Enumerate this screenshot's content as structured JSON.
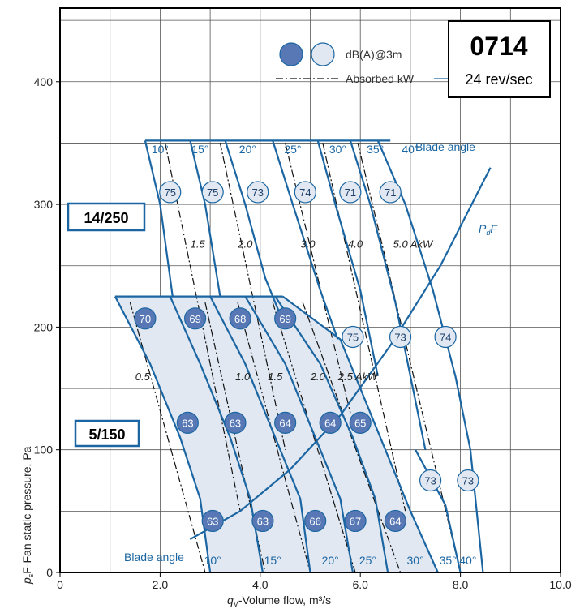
{
  "chart_data": {
    "type": "line",
    "title": "0714",
    "subtitle": "24 rev/sec",
    "xlabel_prefix": "q",
    "xlabel_sub": "V",
    "xlabel_suffix": "-Volume flow, m³/s",
    "ylabel_prefix": "p",
    "ylabel_sub": "s",
    "ylabel_suffix": "F-Fan static pressure, Pa",
    "xlim": [
      0,
      10
    ],
    "ylim": [
      0,
      460
    ],
    "xticks": [
      "0",
      "2.0",
      "4.0",
      "6.0",
      "8.0",
      "10.0"
    ],
    "yticks": [
      "0",
      "100",
      "200",
      "300",
      "400"
    ],
    "grid": true,
    "legend": {
      "placement": "top-right",
      "db_label": "dB(A)@3m",
      "kw_label": "Absorbed kW"
    },
    "colors": {
      "curve": "#1b66a2",
      "fill": "#e1e8f2",
      "dark_marker": "#5878b5",
      "light_marker": "#e1e8f2"
    },
    "sections": [
      {
        "label": "14/250",
        "blade_caption": "Blade angle",
        "blade_angles": [
          {
            "label": "10°",
            "x": 2.0,
            "y": 345
          },
          {
            "label": "15°",
            "x": 2.8,
            "y": 345
          },
          {
            "label": "20°",
            "x": 3.75,
            "y": 345
          },
          {
            "label": "25°",
            "x": 4.65,
            "y": 345
          },
          {
            "label": "30°",
            "x": 5.55,
            "y": 345
          },
          {
            "label": "35°",
            "x": 6.3,
            "y": 345
          },
          {
            "label": "40°",
            "x": 7.0,
            "y": 345
          }
        ],
        "curves": [
          {
            "angle": "10°",
            "points": [
              [
                1.7,
                352
              ],
              [
                2.0,
                300
              ],
              [
                2.25,
                225
              ]
            ]
          },
          {
            "angle": "15°",
            "points": [
              [
                2.6,
                352
              ],
              [
                2.9,
                300
              ],
              [
                3.2,
                225
              ]
            ]
          },
          {
            "angle": "20°",
            "points": [
              [
                3.3,
                352
              ],
              [
                3.7,
                300
              ],
              [
                4.1,
                240
              ],
              [
                4.5,
                200
              ]
            ]
          },
          {
            "angle": "25°",
            "points": [
              [
                4.25,
                352
              ],
              [
                4.65,
                300
              ],
              [
                5.2,
                230
              ],
              [
                5.55,
                190
              ]
            ]
          },
          {
            "angle": "30°",
            "points": [
              [
                5.15,
                352
              ],
              [
                5.5,
                300
              ],
              [
                6.0,
                230
              ],
              [
                6.35,
                160
              ]
            ]
          },
          {
            "angle": "35°",
            "points": [
              [
                5.8,
                352
              ],
              [
                6.2,
                300
              ],
              [
                6.7,
                220
              ],
              [
                7.05,
                150
              ],
              [
                7.3,
                100
              ]
            ]
          },
          {
            "angle": "40°",
            "points": [
              [
                6.35,
                352
              ],
              [
                6.9,
                300
              ],
              [
                7.45,
                230
              ],
              [
                7.9,
                160
              ],
              [
                8.2,
                100
              ],
              [
                8.45,
                0
              ]
            ]
          }
        ],
        "kw_lines": [
          {
            "label": "1.5",
            "label_x": 2.75,
            "label_y": 268,
            "points": [
              [
                2.1,
                350
              ],
              [
                3.6,
                50
              ]
            ]
          },
          {
            "label": "2.0",
            "label_x": 3.7,
            "label_y": 268,
            "points": [
              [
                3.2,
                350
              ],
              [
                4.5,
                100
              ]
            ]
          },
          {
            "label": "3.0",
            "label_x": 4.95,
            "label_y": 268,
            "points": [
              [
                4.5,
                350
              ],
              [
                5.8,
                130
              ]
            ]
          },
          {
            "label": "4.0",
            "label_x": 5.9,
            "label_y": 268,
            "points": [
              [
                5.25,
                350
              ],
              [
                6.9,
                50
              ]
            ]
          },
          {
            "label": "5.0 AkW",
            "label_x": 7.05,
            "label_y": 268,
            "points": [
              [
                5.95,
                350
              ],
              [
                8.0,
                0
              ]
            ]
          }
        ],
        "markers": [
          {
            "x": 2.2,
            "y": 310,
            "value": "75",
            "shade": "light"
          },
          {
            "x": 3.05,
            "y": 310,
            "value": "75",
            "shade": "light"
          },
          {
            "x": 3.95,
            "y": 310,
            "value": "73",
            "shade": "light"
          },
          {
            "x": 4.9,
            "y": 310,
            "value": "74",
            "shade": "light"
          },
          {
            "x": 5.8,
            "y": 310,
            "value": "71",
            "shade": "light"
          },
          {
            "x": 6.6,
            "y": 310,
            "value": "71",
            "shade": "light"
          },
          {
            "x": 5.85,
            "y": 192,
            "value": "75",
            "shade": "light"
          },
          {
            "x": 6.8,
            "y": 192,
            "value": "73",
            "shade": "light"
          },
          {
            "x": 7.7,
            "y": 192,
            "value": "74",
            "shade": "light"
          },
          {
            "x": 7.4,
            "y": 75,
            "value": "73",
            "shade": "light"
          },
          {
            "x": 8.15,
            "y": 75,
            "value": "73",
            "shade": "light"
          }
        ]
      },
      {
        "label": "5/150",
        "blade_caption": "Blade angle",
        "blade_angles": [
          {
            "label": "10°",
            "x": 3.05,
            "y": 10
          },
          {
            "label": "15°",
            "x": 4.25,
            "y": 10
          },
          {
            "label": "20°",
            "x": 5.4,
            "y": 10
          },
          {
            "label": "25°",
            "x": 6.15,
            "y": 10
          },
          {
            "label": "30°",
            "x": 7.1,
            "y": 10
          },
          {
            "label": "35°",
            "x": 7.75,
            "y": 10
          },
          {
            "label": "40°",
            "x": 8.15,
            "y": 10
          }
        ],
        "curves": [
          {
            "angle": "10°",
            "points": [
              [
                1.1,
                225
              ],
              [
                1.8,
                170
              ],
              [
                2.4,
                110
              ],
              [
                2.8,
                60
              ],
              [
                3.0,
                0
              ]
            ]
          },
          {
            "angle": "15°",
            "points": [
              [
                2.2,
                225
              ],
              [
                2.8,
                170
              ],
              [
                3.4,
                110
              ],
              [
                3.8,
                60
              ],
              [
                4.05,
                0
              ]
            ]
          },
          {
            "angle": "20°",
            "points": [
              [
                3.0,
                225
              ],
              [
                3.7,
                170
              ],
              [
                4.3,
                110
              ],
              [
                4.8,
                60
              ],
              [
                5.0,
                0
              ]
            ]
          },
          {
            "angle": "25°",
            "points": [
              [
                3.7,
                225
              ],
              [
                4.5,
                170
              ],
              [
                5.1,
                110
              ],
              [
                5.6,
                60
              ],
              [
                5.85,
                0
              ]
            ]
          },
          {
            "angle": "30°",
            "points": [
              [
                4.3,
                225
              ],
              [
                5.2,
                170
              ],
              [
                5.85,
                110
              ],
              [
                6.3,
                60
              ],
              [
                6.55,
                0
              ]
            ]
          },
          {
            "angle": "35°",
            "points": [
              [
                4.45,
                225
              ],
              [
                5.6,
                190
              ],
              [
                6.3,
                120
              ],
              [
                7.0,
                50
              ],
              [
                7.55,
                0
              ]
            ]
          },
          {
            "angle": "40°",
            "points": [
              [
                7.1,
                100
              ],
              [
                7.7,
                55
              ],
              [
                8.0,
                0
              ]
            ]
          }
        ],
        "kw_lines": [
          {
            "label": "0.5",
            "label_x": 1.65,
            "label_y": 160,
            "points": [
              [
                1.4,
                220
              ],
              [
                2.9,
                0
              ]
            ]
          },
          {
            "label": "1.0",
            "label_x": 3.65,
            "label_y": 160,
            "points": [
              [
                2.9,
                220
              ],
              [
                4.1,
                0
              ]
            ]
          },
          {
            "label": "1.5",
            "label_x": 4.3,
            "label_y": 160,
            "points": [
              [
                3.55,
                220
              ],
              [
                5.0,
                0
              ]
            ]
          },
          {
            "label": "2.0",
            "label_x": 5.15,
            "label_y": 160,
            "points": [
              [
                4.25,
                220
              ],
              [
                5.9,
                0
              ]
            ]
          },
          {
            "label": "2.5 AkW",
            "label_x": 5.95,
            "label_y": 160,
            "points": [
              [
                4.85,
                220
              ],
              [
                6.8,
                0
              ]
            ]
          }
        ],
        "markers": [
          {
            "x": 1.7,
            "y": 207,
            "value": "70",
            "shade": "dark"
          },
          {
            "x": 2.7,
            "y": 207,
            "value": "69",
            "shade": "dark"
          },
          {
            "x": 3.6,
            "y": 207,
            "value": "68",
            "shade": "dark"
          },
          {
            "x": 4.5,
            "y": 207,
            "value": "69",
            "shade": "dark"
          },
          {
            "x": 2.55,
            "y": 122,
            "value": "63",
            "shade": "dark"
          },
          {
            "x": 3.5,
            "y": 122,
            "value": "63",
            "shade": "dark"
          },
          {
            "x": 4.5,
            "y": 122,
            "value": "64",
            "shade": "dark"
          },
          {
            "x": 5.4,
            "y": 122,
            "value": "64",
            "shade": "dark"
          },
          {
            "x": 6.0,
            "y": 122,
            "value": "65",
            "shade": "dark"
          },
          {
            "x": 3.05,
            "y": 42,
            "value": "63",
            "shade": "dark"
          },
          {
            "x": 4.05,
            "y": 42,
            "value": "63",
            "shade": "dark"
          },
          {
            "x": 5.1,
            "y": 42,
            "value": "66",
            "shade": "dark"
          },
          {
            "x": 5.9,
            "y": 42,
            "value": "67",
            "shade": "dark"
          },
          {
            "x": 6.7,
            "y": 42,
            "value": "64",
            "shade": "dark"
          }
        ]
      }
    ],
    "pdf_curve": {
      "label_prefix": "P",
      "label_sub": "d",
      "label_suffix": "F",
      "points": [
        [
          2.6,
          27
        ],
        [
          3.6,
          50
        ],
        [
          4.6,
          84
        ],
        [
          5.6,
          128
        ],
        [
          6.6,
          185
        ],
        [
          7.6,
          250
        ],
        [
          8.6,
          330
        ]
      ]
    }
  }
}
